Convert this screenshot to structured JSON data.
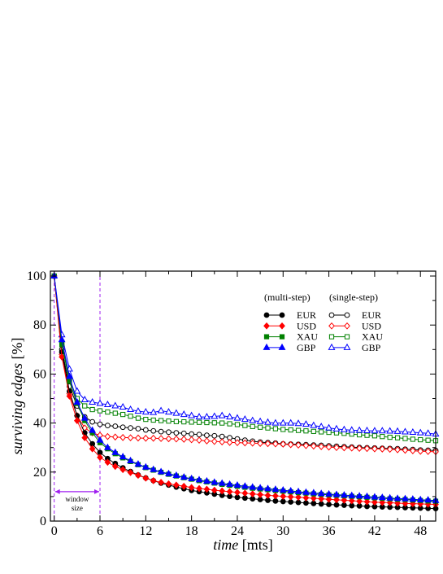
{
  "chart_data": {
    "type": "line",
    "xlabel_italic": "time",
    "xlabel_rest": " [mts]",
    "ylabel_italic": "surviving edges",
    "ylabel_rest": " [%]",
    "xlim": [
      -0.5,
      50
    ],
    "ylim": [
      0,
      102
    ],
    "xticks": [
      0,
      6,
      12,
      18,
      24,
      30,
      36,
      42,
      48
    ],
    "yticks": [
      0,
      20,
      40,
      60,
      80,
      100
    ],
    "grid": false,
    "legend_position": "top-right",
    "legend_headers": [
      "(multi-step)",
      "(single-step)"
    ],
    "annotation": {
      "line1": "window",
      "line2": "size",
      "window_start": 0,
      "window_end": 6
    },
    "vlines": [
      0,
      6
    ],
    "x": [
      0,
      1,
      2,
      3,
      4,
      5,
      6,
      7,
      8,
      9,
      10,
      11,
      12,
      13,
      14,
      15,
      16,
      17,
      18,
      19,
      20,
      21,
      22,
      23,
      24,
      25,
      26,
      27,
      28,
      29,
      30,
      31,
      32,
      33,
      34,
      35,
      36,
      37,
      38,
      39,
      40,
      41,
      42,
      43,
      44,
      45,
      46,
      47,
      48,
      49,
      50
    ],
    "series": [
      {
        "name": "EUR",
        "group": "multi-step",
        "color": "#000000",
        "marker": "circle",
        "filled": true,
        "values": [
          100,
          69,
          53,
          43,
          36,
          31.5,
          28,
          25.5,
          23.5,
          21.7,
          20.2,
          18.8,
          17.6,
          16.5,
          15.5,
          14.7,
          13.9,
          13.2,
          12.5,
          12,
          11.5,
          11,
          10.5,
          10.1,
          9.7,
          9.4,
          9.1,
          8.8,
          8.5,
          8.2,
          8,
          7.8,
          7.6,
          7.4,
          7.2,
          7,
          6.8,
          6.6,
          6.5,
          6.3,
          6.2,
          6,
          5.9,
          5.8,
          5.7,
          5.6,
          5.5,
          5.4,
          5.3,
          5.2,
          5.1
        ]
      },
      {
        "name": "USD",
        "group": "multi-step",
        "color": "#ff0000",
        "marker": "diamond",
        "filled": true,
        "values": [
          100,
          67,
          51,
          41,
          34,
          29.5,
          26,
          24,
          22.3,
          21,
          19.8,
          18.7,
          17.5,
          16.5,
          15.8,
          15.2,
          14.7,
          14.2,
          13.7,
          13.3,
          13,
          12.6,
          12.3,
          12,
          11.7,
          11.4,
          11.1,
          10.8,
          10.5,
          10.3,
          10.1,
          9.9,
          9.7,
          9.5,
          9.3,
          9.1,
          8.9,
          8.7,
          8.5,
          8.3,
          8.1,
          7.9,
          7.7,
          7.6,
          7.5,
          7.3,
          7.2,
          7.1,
          7,
          6.9,
          6.8
        ]
      },
      {
        "name": "XAU",
        "group": "multi-step",
        "color": "#008000",
        "marker": "square",
        "filled": true,
        "values": [
          100,
          72,
          57,
          48,
          41,
          36,
          32,
          29.5,
          27.5,
          25.8,
          24.3,
          23,
          21.8,
          20.8,
          19.9,
          19.1,
          18.4,
          17.7,
          17.1,
          16.5,
          16,
          15.5,
          15,
          14.6,
          14.2,
          13.8,
          13.4,
          13.1,
          12.8,
          12.5,
          12.2,
          11.9,
          11.6,
          11.4,
          11.1,
          10.9,
          10.7,
          10.5,
          10.3,
          10.1,
          9.9,
          9.7,
          9.5,
          9.3,
          9.1,
          8.9,
          8.8,
          8.6,
          8.4,
          8.2,
          8.1
        ]
      },
      {
        "name": "GBP",
        "group": "multi-step",
        "color": "#0000ff",
        "marker": "triangle",
        "filled": true,
        "values": [
          100,
          74,
          59,
          48.5,
          42,
          37,
          33,
          30,
          28,
          26.2,
          24.6,
          23.2,
          22,
          21,
          20.1,
          19.3,
          18.6,
          17.9,
          17.3,
          16.8,
          16.3,
          15.8,
          15.4,
          15,
          14.6,
          14.2,
          13.8,
          13.5,
          13.2,
          12.9,
          12.6,
          12.3,
          12,
          11.7,
          11.5,
          11.2,
          11,
          10.8,
          10.6,
          10.4,
          10.2,
          10,
          9.8,
          9.6,
          9.4,
          9.2,
          9.1,
          8.9,
          8.7,
          8.6,
          8.4
        ]
      },
      {
        "name": "EUR",
        "group": "single-step",
        "color": "#000000",
        "marker": "circle",
        "filled": false,
        "values": [
          100,
          70,
          55,
          47,
          42.5,
          40.5,
          39.5,
          39,
          38.7,
          38.3,
          38,
          37.7,
          37.2,
          36.8,
          36.5,
          36.3,
          36,
          35.8,
          35.5,
          35.3,
          35,
          34.8,
          34.5,
          34,
          33.5,
          33,
          32.6,
          32.2,
          32,
          31.8,
          31.5,
          31.4,
          31.3,
          31.2,
          31,
          30.9,
          30.7,
          30.5,
          30.3,
          30.2,
          30,
          29.9,
          29.8,
          29.7,
          29.6,
          29.5,
          29.3,
          29.2,
          29,
          28.9,
          28.8
        ]
      },
      {
        "name": "USD",
        "group": "single-step",
        "color": "#ff0000",
        "marker": "diamond",
        "filled": false,
        "values": [
          100,
          68,
          52,
          43,
          38,
          36,
          35,
          34.5,
          34.3,
          34.1,
          34,
          33.9,
          33.8,
          33.8,
          33.7,
          33.6,
          33.5,
          33.4,
          33.2,
          33,
          32.7,
          32.5,
          32.3,
          32.1,
          32,
          31.9,
          31.8,
          31.7,
          31.6,
          31.5,
          31.4,
          31.2,
          31,
          30.8,
          30.6,
          30.4,
          30.2,
          30,
          29.9,
          29.8,
          29.7,
          29.6,
          29.5,
          29.4,
          29.3,
          29.1,
          28.9,
          28.7,
          28.5,
          28.4,
          28.3
        ]
      },
      {
        "name": "XAU",
        "group": "single-step",
        "color": "#008000",
        "marker": "square",
        "filled": false,
        "values": [
          100,
          73,
          58,
          50,
          47,
          45.5,
          45,
          44.5,
          44,
          43.5,
          42.8,
          42,
          41.5,
          41.2,
          41,
          40.8,
          40.6,
          40.5,
          40.4,
          40.3,
          40.2,
          40.1,
          40,
          39.7,
          39.4,
          39,
          38.6,
          38.3,
          38,
          37.7,
          37.4,
          37.2,
          37,
          36.8,
          36.6,
          36.4,
          36.2,
          36,
          35.8,
          35.5,
          35.2,
          35,
          34.8,
          34.5,
          34.2,
          34,
          33.7,
          33.4,
          33.2,
          33,
          32.8
        ]
      },
      {
        "name": "GBP",
        "group": "single-step",
        "color": "#0000ff",
        "marker": "triangle",
        "filled": false,
        "values": [
          100,
          76,
          62,
          53,
          49.5,
          48.5,
          48,
          47.5,
          47,
          46.5,
          45.5,
          44.8,
          44.5,
          44.3,
          45,
          44.5,
          44,
          43.5,
          43,
          42.5,
          42.5,
          42.7,
          43,
          42.5,
          42,
          41.5,
          41,
          40.6,
          40.3,
          40,
          40,
          40,
          39.8,
          39.5,
          39,
          38.5,
          38,
          37.6,
          37.3,
          37.1,
          37,
          36.9,
          36.8,
          36.8,
          36.7,
          36.6,
          36.4,
          36.2,
          36,
          35.8,
          35.5
        ]
      }
    ]
  }
}
